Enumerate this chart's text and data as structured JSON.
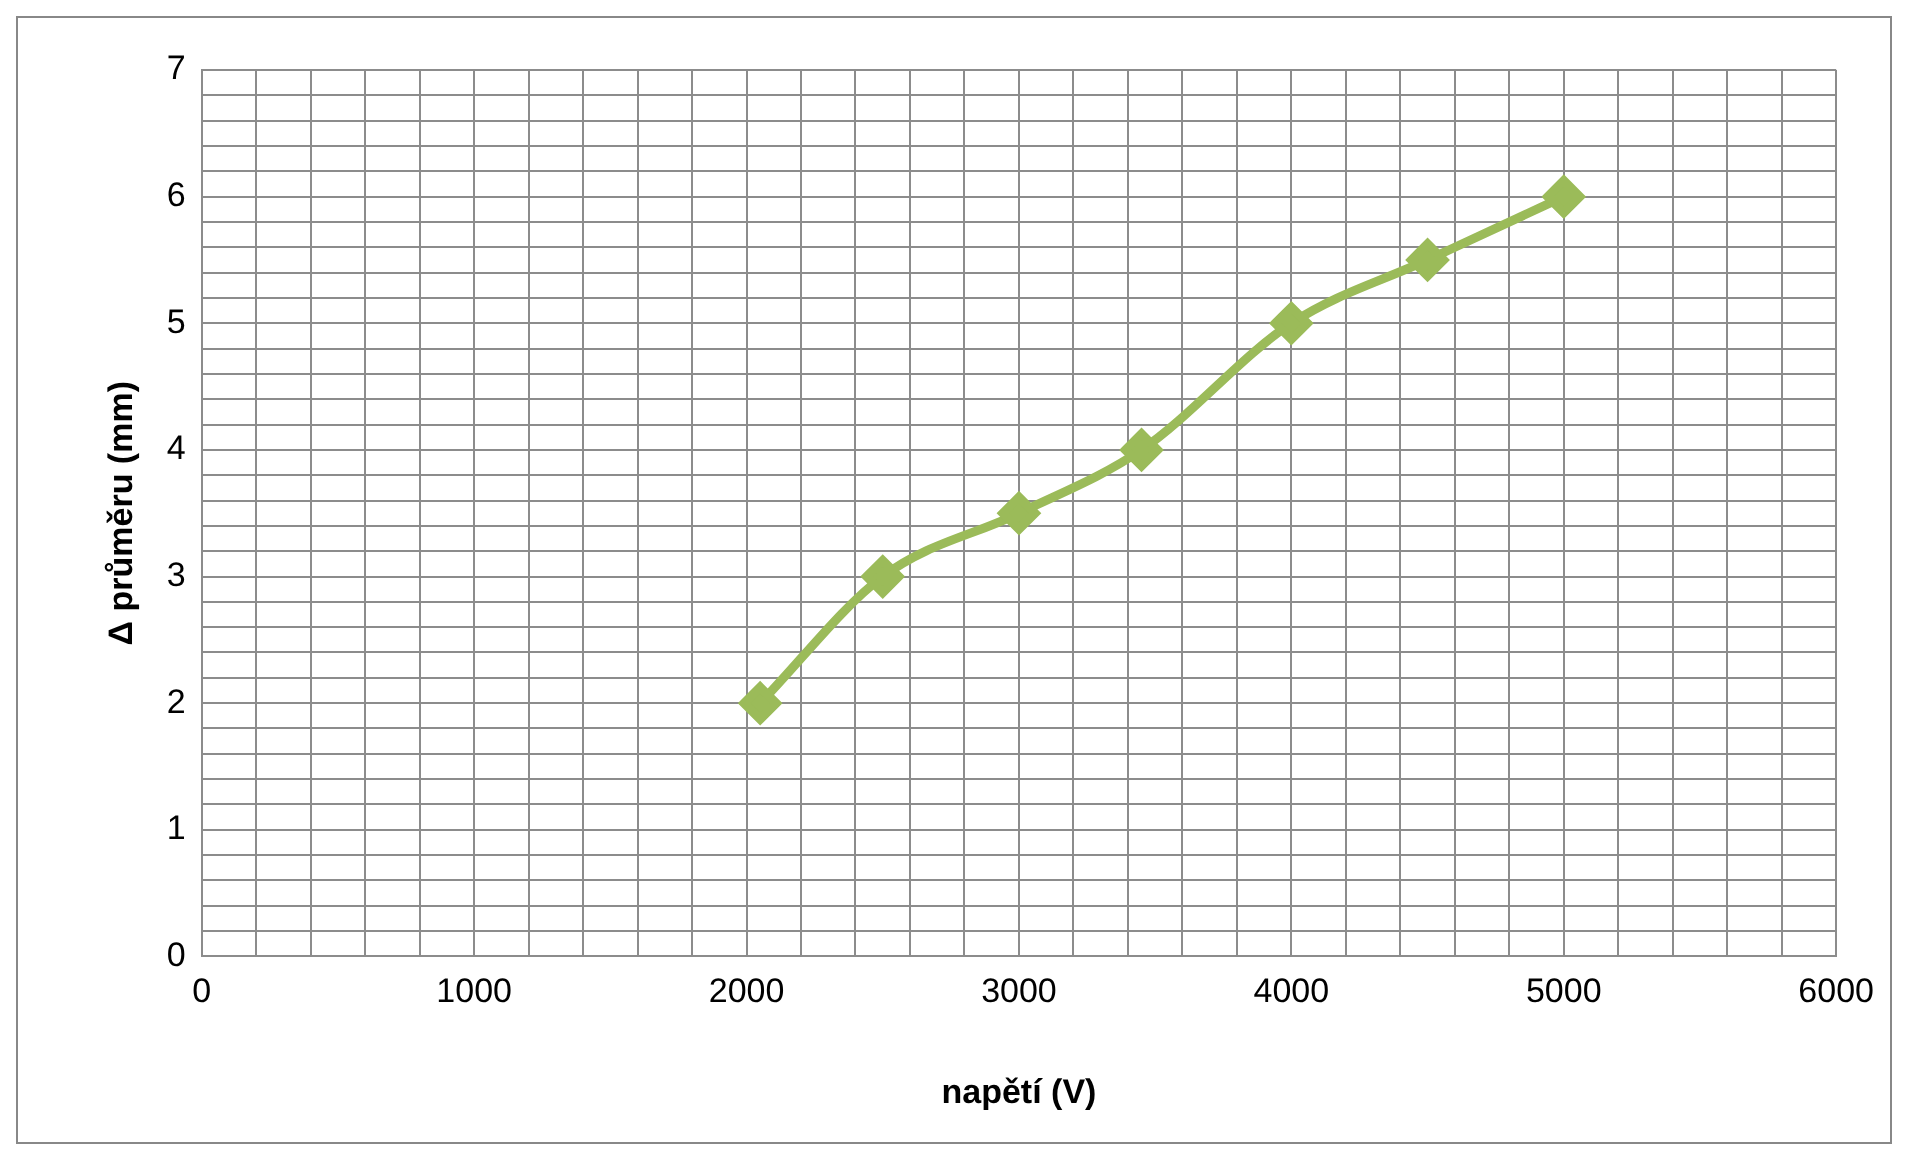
{
  "chart_data": {
    "type": "line",
    "xlabel": "napětí (V)",
    "ylabel": "Δ průměru (mm)",
    "x": [
      2050,
      2500,
      3000,
      3450,
      4000,
      4500,
      5000
    ],
    "series": [
      {
        "color": "#9bbb59",
        "values": [
          2,
          3,
          3.5,
          4,
          5,
          5.5,
          6
        ]
      }
    ],
    "xlim": [
      0,
      6000
    ],
    "xticks": [
      0,
      {
        "value": 200,
        "label": null
      },
      {
        "value": 400,
        "label": null
      },
      {
        "value": 600,
        "label": null
      },
      {
        "value": 800,
        "label": null
      },
      1000,
      {
        "value": 1200,
        "label": null
      },
      {
        "value": 1400,
        "label": null
      },
      {
        "value": 1600,
        "label": null
      },
      {
        "value": 1800,
        "label": null
      },
      2000,
      {
        "value": 2200,
        "label": null
      },
      {
        "value": 2400,
        "label": null
      },
      {
        "value": 2600,
        "label": null
      },
      {
        "value": 2800,
        "label": null
      },
      3000,
      {
        "value": 3200,
        "label": null
      },
      {
        "value": 3400,
        "label": null
      },
      {
        "value": 3600,
        "label": null
      },
      {
        "value": 3800,
        "label": null
      },
      4000,
      {
        "value": 4200,
        "label": null
      },
      {
        "value": 4400,
        "label": null
      },
      {
        "value": 4600,
        "label": null
      },
      {
        "value": 4800,
        "label": null
      },
      5000,
      {
        "value": 5200,
        "label": null
      },
      {
        "value": 5400,
        "label": null
      },
      {
        "value": 5600,
        "label": null
      },
      {
        "value": 5800,
        "label": null
      },
      6000
    ],
    "ylim": [
      0,
      7
    ],
    "yticks": [
      0,
      {
        "value": 0.2,
        "label": null
      },
      {
        "value": 0.4,
        "label": null
      },
      {
        "value": 0.6,
        "label": null
      },
      {
        "value": 0.8,
        "label": null
      },
      1,
      {
        "value": 1.2,
        "label": null
      },
      {
        "value": 1.4,
        "label": null
      },
      {
        "value": 1.6,
        "label": null
      },
      {
        "value": 1.8,
        "label": null
      },
      2,
      {
        "value": 2.2,
        "label": null
      },
      {
        "value": 2.4,
        "label": null
      },
      {
        "value": 2.6,
        "label": null
      },
      {
        "value": 2.8,
        "label": null
      },
      3,
      {
        "value": 3.2,
        "label": null
      },
      {
        "value": 3.4,
        "label": null
      },
      {
        "value": 3.6,
        "label": null
      },
      {
        "value": 3.8,
        "label": null
      },
      4,
      {
        "value": 4.2,
        "label": null
      },
      {
        "value": 4.4,
        "label": null
      },
      {
        "value": 4.6,
        "label": null
      },
      {
        "value": 4.8,
        "label": null
      },
      5,
      {
        "value": 5.2,
        "label": null
      },
      {
        "value": 5.4,
        "label": null
      },
      {
        "value": 5.6,
        "label": null
      },
      {
        "value": 5.8,
        "label": null
      },
      6,
      {
        "value": 6.2,
        "label": null
      },
      {
        "value": 6.4,
        "label": null
      },
      {
        "value": 6.6,
        "label": null
      },
      {
        "value": 6.8,
        "label": null
      },
      7
    ],
    "grid": true,
    "legend": false,
    "marker": "diamond",
    "line_style": "solid"
  }
}
